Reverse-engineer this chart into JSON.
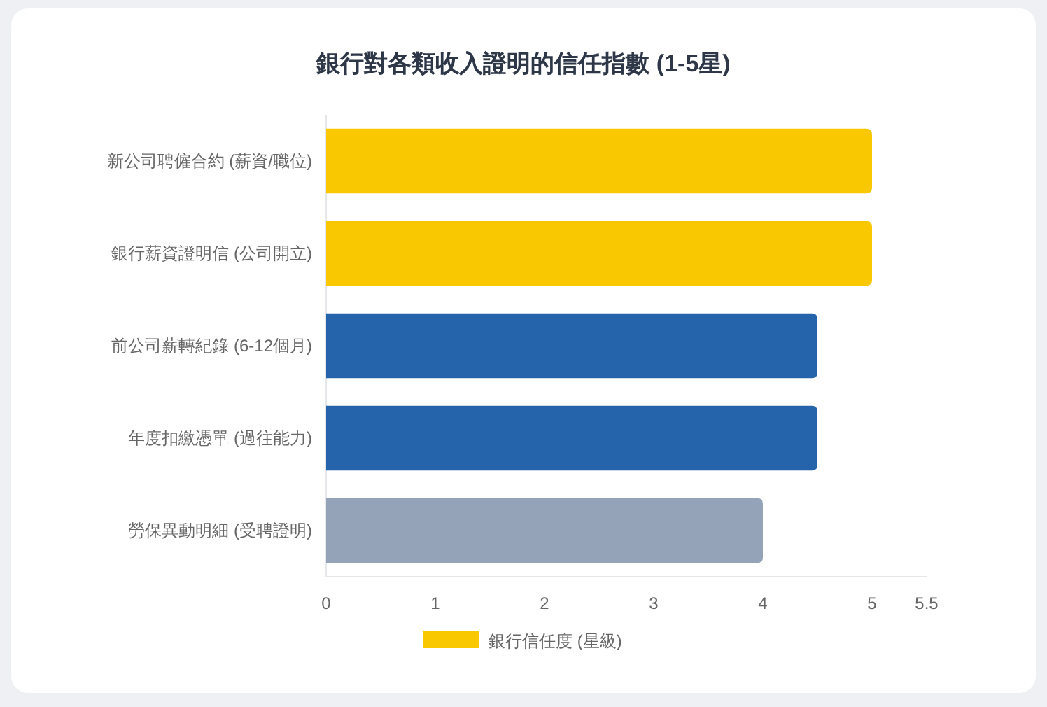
{
  "chart_data": {
    "type": "bar",
    "orientation": "horizontal",
    "title": "銀行對各類收入證明的信任指數 (1-5星)",
    "categories": [
      "新公司聘僱合約 (薪資/職位)",
      "銀行薪資證明信 (公司開立)",
      "前公司薪轉紀錄 (6-12個月)",
      "年度扣繳憑單 (過往能力)",
      "勞保異動明細 (受聘證明)"
    ],
    "series": [
      {
        "name": "銀行信任度 (星級)",
        "color": "#f9c800",
        "colors": [
          "#f9c800",
          "#f9c800",
          "#2563ab",
          "#2563ab",
          "#94a3b8"
        ],
        "values": [
          5,
          5,
          4.5,
          4.5,
          4
        ]
      }
    ],
    "xlim": [
      0,
      5.5
    ],
    "xticks": [
      0,
      1,
      2,
      3,
      4,
      5,
      5.5
    ],
    "legend": "bottom"
  }
}
